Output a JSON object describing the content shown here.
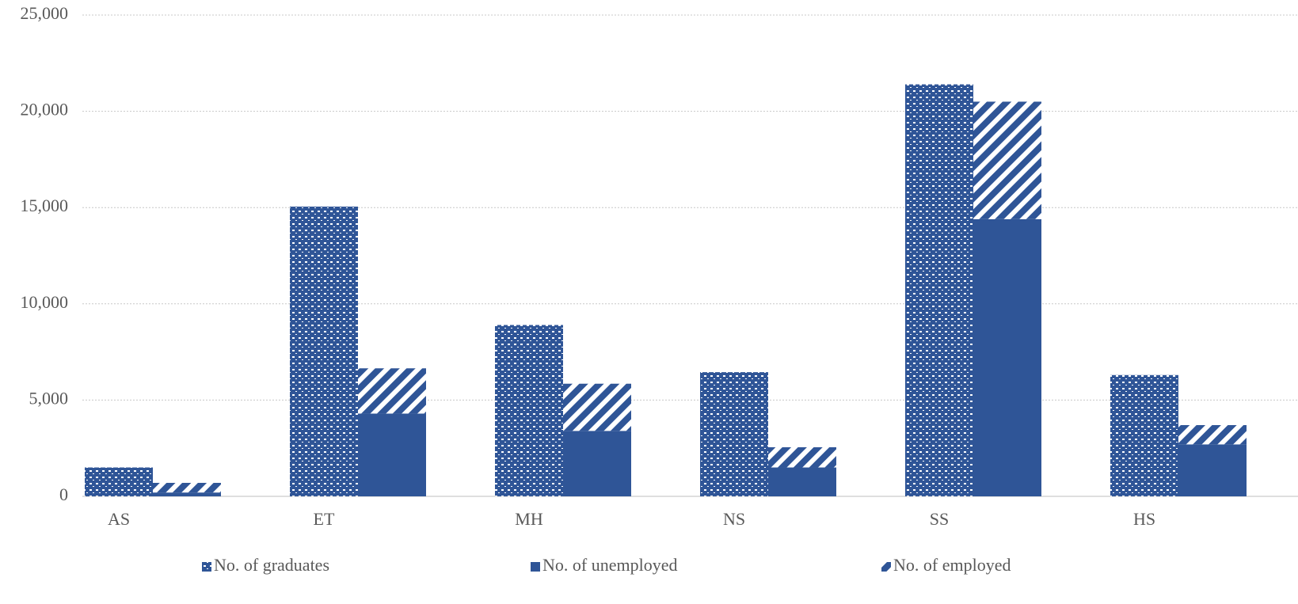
{
  "chart_data": {
    "type": "bar",
    "categories": [
      "AS",
      "ET",
      "MH",
      "NS",
      "SS",
      "HS"
    ],
    "series": [
      {
        "name": "No. of graduates",
        "color": "#2f5597",
        "pattern": "dots",
        "stack": 0,
        "values": [
          1500,
          15050,
          8900,
          6450,
          21400,
          6300
        ]
      },
      {
        "name": "No. of unemployed",
        "color": "#2f5597",
        "pattern": "solid",
        "stack": 1,
        "values": [
          200,
          4300,
          3400,
          1500,
          14400,
          2700
        ]
      },
      {
        "name": "No. of employed",
        "color": "#2f5597",
        "pattern": "stripes",
        "stack": 1,
        "values": [
          500,
          2350,
          2450,
          1050,
          6100,
          1000
        ]
      }
    ],
    "ylim": [
      0,
      25000
    ],
    "yticks": [
      0,
      {
        "value": 5000,
        "label": "5,000"
      },
      {
        "value": 10000,
        "label": "10,000"
      },
      {
        "value": 15000,
        "label": "15,000"
      },
      {
        "value": 20000,
        "label": "20,000"
      },
      {
        "value": 25000,
        "label": "25,000"
      }
    ],
    "grid": true,
    "legend": "bottom"
  }
}
